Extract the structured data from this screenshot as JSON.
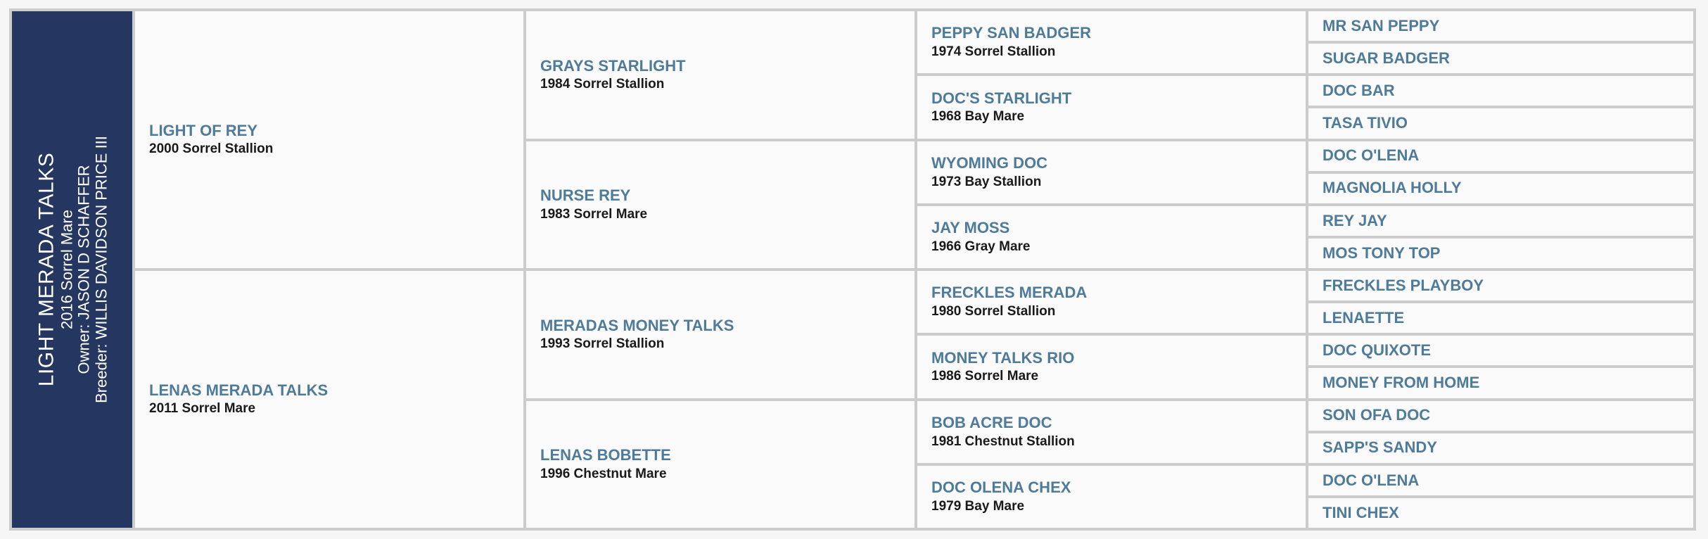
{
  "subject": {
    "name": "LIGHT MERADA TALKS",
    "details": "2016 Sorrel Mare",
    "owner": "Owner: JASON D SCHAFFER",
    "breeder": "Breeder: WILLIS DAVIDSON PRICE III"
  },
  "colors": {
    "sidebar": "#253760",
    "name": "#4f7b9b",
    "border": "#cccccc"
  },
  "gen1": [
    {
      "name": "LIGHT OF REY",
      "details": "2000 Sorrel Stallion"
    },
    {
      "name": "LENAS MERADA TALKS",
      "details": "2011 Sorrel Mare"
    }
  ],
  "gen2": [
    {
      "name": "GRAYS STARLIGHT",
      "details": "1984 Sorrel Stallion"
    },
    {
      "name": "NURSE REY",
      "details": "1983 Sorrel Mare"
    },
    {
      "name": "MERADAS MONEY TALKS",
      "details": "1993 Sorrel Stallion"
    },
    {
      "name": "LENAS BOBETTE",
      "details": "1996 Chestnut Mare"
    }
  ],
  "gen3": [
    {
      "name": "PEPPY SAN BADGER",
      "details": "1974 Sorrel Stallion"
    },
    {
      "name": "DOC'S STARLIGHT",
      "details": "1968 Bay Mare"
    },
    {
      "name": "WYOMING DOC",
      "details": "1973 Bay Stallion"
    },
    {
      "name": "JAY MOSS",
      "details": "1966 Gray Mare"
    },
    {
      "name": "FRECKLES MERADA",
      "details": "1980 Sorrel Stallion"
    },
    {
      "name": "MONEY TALKS RIO",
      "details": "1986 Sorrel Mare"
    },
    {
      "name": "BOB ACRE DOC",
      "details": "1981 Chestnut Stallion"
    },
    {
      "name": "DOC OLENA CHEX",
      "details": "1979 Bay Mare"
    }
  ],
  "gen4": [
    {
      "name": "MR SAN PEPPY"
    },
    {
      "name": "SUGAR BADGER"
    },
    {
      "name": "DOC BAR"
    },
    {
      "name": "TASA TIVIO"
    },
    {
      "name": "DOC O'LENA"
    },
    {
      "name": "MAGNOLIA HOLLY"
    },
    {
      "name": "REY JAY"
    },
    {
      "name": "MOS TONY TOP"
    },
    {
      "name": "FRECKLES PLAYBOY"
    },
    {
      "name": "LENAETTE"
    },
    {
      "name": "DOC QUIXOTE"
    },
    {
      "name": "MONEY FROM HOME"
    },
    {
      "name": "SON OFA DOC"
    },
    {
      "name": "SAPP'S SANDY"
    },
    {
      "name": "DOC O'LENA"
    },
    {
      "name": "TINI CHEX"
    }
  ]
}
